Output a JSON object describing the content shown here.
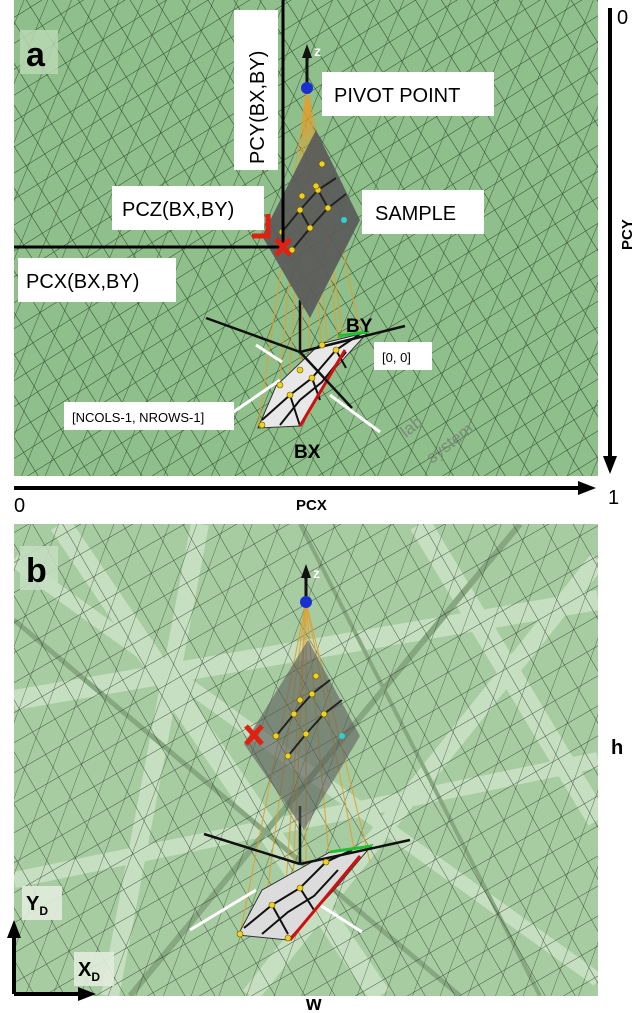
{
  "panel_a": {
    "letter": "a",
    "pivot_point": "PIVOT POINT",
    "sample": "SAMPLE",
    "pcy_label": "PCY(BX,BY)",
    "pcz_label": "PCZ(BX,BY)",
    "pcx_label": "PCX(BX,BY)",
    "by": "BY",
    "bx": "BX",
    "origin_index": "[0, 0]",
    "end_index": "[NCOLS-1, NROWS-1]",
    "lab_system": [
      "lab",
      "system"
    ],
    "z_axis": "z",
    "pcy_axis": "PCY",
    "pcy_axis_min": "0",
    "pcy_axis_max": "1",
    "pcx_axis": "PCX",
    "pcx_axis_min": "0",
    "pcx_axis_max": "1"
  },
  "panel_b": {
    "letter": "b",
    "z_axis": "z",
    "height_label": "h",
    "width_label": "w",
    "yd_main": "Y",
    "yd_sub": "D",
    "xd_main": "X",
    "xd_sub": "D"
  },
  "colors": {
    "background_green": "#8fbf8a",
    "grid_line": "#2e4a2e",
    "beam_orange": "#e0a030",
    "sample_gray": "#5a5a5a",
    "pivot_blue": "#1a2fd0",
    "marker_red": "#e02010",
    "scan_highlight_red": "#d01010",
    "scan_highlight_green": "#20c030"
  }
}
